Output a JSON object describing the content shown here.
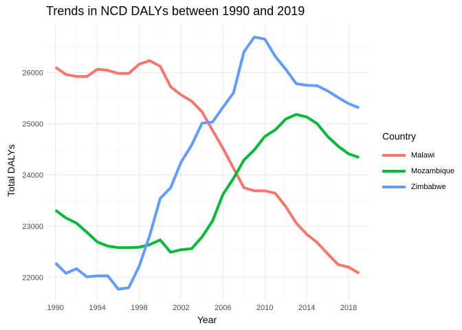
{
  "chart_data": {
    "type": "line",
    "title": "Trends in NCD DALYs between 1990 and 2019",
    "xlabel": "Year",
    "ylabel": "Total DALYs",
    "xlim": [
      1989.1,
      2019.9
    ],
    "ylim": [
      21550,
      26930
    ],
    "x_ticks": [
      1990,
      1994,
      1998,
      2002,
      2006,
      2010,
      2014,
      2018
    ],
    "y_ticks": [
      22000,
      23000,
      24000,
      25000,
      26000
    ],
    "grid": true,
    "legend_title": "Country",
    "legend_position": "right",
    "x": [
      1990,
      1991,
      1992,
      1993,
      1994,
      1995,
      1996,
      1997,
      1998,
      1999,
      2000,
      2001,
      2002,
      2003,
      2004,
      2005,
      2006,
      2007,
      2008,
      2009,
      2010,
      2011,
      2012,
      2013,
      2014,
      2015,
      2016,
      2017,
      2018,
      2019
    ],
    "series": [
      {
        "name": "Malawi",
        "color": "#F8766D",
        "values": [
          26100,
          25960,
          25920,
          25920,
          26060,
          26040,
          25980,
          25980,
          26160,
          26230,
          26120,
          25720,
          25560,
          25440,
          25230,
          24870,
          24520,
          24130,
          23750,
          23690,
          23690,
          23640,
          23380,
          23060,
          22840,
          22680,
          22460,
          22250,
          22200,
          22080
        ]
      },
      {
        "name": "Mozambique",
        "color": "#00BA38",
        "values": [
          23310,
          23160,
          23060,
          22880,
          22690,
          22610,
          22580,
          22580,
          22590,
          22640,
          22730,
          22490,
          22540,
          22560,
          22790,
          23100,
          23620,
          23930,
          24290,
          24490,
          24750,
          24880,
          25090,
          25180,
          25130,
          25000,
          24750,
          24560,
          24410,
          24340
        ]
      },
      {
        "name": "Zimbabwe",
        "color": "#619CFF",
        "values": [
          22280,
          22080,
          22170,
          22010,
          22030,
          22030,
          21770,
          21800,
          22220,
          22820,
          23540,
          23750,
          24250,
          24580,
          25010,
          25030,
          25320,
          25600,
          26400,
          26690,
          26650,
          26310,
          26060,
          25780,
          25750,
          25740,
          25640,
          25510,
          25390,
          25310
        ]
      }
    ]
  }
}
